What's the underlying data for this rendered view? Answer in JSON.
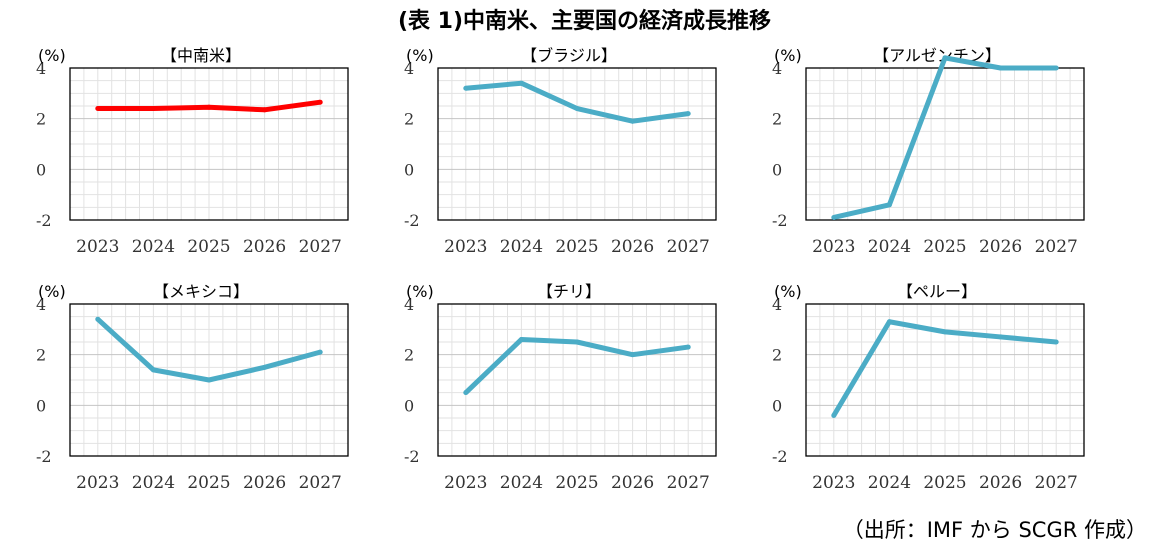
{
  "title": "(表 1)中南米、主要国の経済成長推移",
  "source": "（出所：IMF から SCGR 作成）",
  "chart_data": [
    {
      "type": "line",
      "title": "【中南米】",
      "ylabel": "(%)",
      "categories": [
        "2023",
        "2024",
        "2025",
        "2026",
        "2027"
      ],
      "values": [
        2.4,
        2.4,
        2.45,
        2.35,
        2.65
      ],
      "ylim": [
        -2,
        4
      ],
      "yticks": [
        "4",
        "2",
        "0",
        "-2"
      ],
      "color": "#ff0000",
      "grid": true
    },
    {
      "type": "line",
      "title": "【ブラジル】",
      "ylabel": "(%)",
      "categories": [
        "2023",
        "2024",
        "2025",
        "2026",
        "2027"
      ],
      "values": [
        3.2,
        3.4,
        2.4,
        1.9,
        2.2
      ],
      "ylim": [
        -2,
        4
      ],
      "yticks": [
        "4",
        "2",
        "0",
        "-2"
      ],
      "color": "#4bacc6",
      "grid": true
    },
    {
      "type": "line",
      "title": "【アルゼンチン】",
      "ylabel": "(%)",
      "categories": [
        "2023",
        "2024",
        "2025",
        "2026",
        "2027"
      ],
      "values": [
        -1.9,
        -1.4,
        4.4,
        4.0,
        4.0
      ],
      "ylim": [
        -2,
        4
      ],
      "yticks": [
        "4",
        "2",
        "0",
        "-2"
      ],
      "color": "#4bacc6",
      "grid": true
    },
    {
      "type": "line",
      "title": "【メキシコ】",
      "ylabel": "(%)",
      "categories": [
        "2023",
        "2024",
        "2025",
        "2026",
        "2027"
      ],
      "values": [
        3.4,
        1.4,
        1.0,
        1.5,
        2.1
      ],
      "ylim": [
        -2,
        4
      ],
      "yticks": [
        "4",
        "2",
        "0",
        "-2"
      ],
      "color": "#4bacc6",
      "grid": true
    },
    {
      "type": "line",
      "title": "【チリ】",
      "ylabel": "(%)",
      "categories": [
        "2023",
        "2024",
        "2025",
        "2026",
        "2027"
      ],
      "values": [
        0.5,
        2.6,
        2.5,
        2.0,
        2.3
      ],
      "ylim": [
        -2,
        4
      ],
      "yticks": [
        "4",
        "2",
        "0",
        "-2"
      ],
      "color": "#4bacc6",
      "grid": true
    },
    {
      "type": "line",
      "title": "【ペルー】",
      "ylabel": "(%)",
      "categories": [
        "2023",
        "2024",
        "2025",
        "2026",
        "2027"
      ],
      "values": [
        -0.4,
        3.3,
        2.9,
        2.7,
        2.5
      ],
      "ylim": [
        -2,
        4
      ],
      "yticks": [
        "4",
        "2",
        "0",
        "-2"
      ],
      "color": "#4bacc6",
      "grid": true
    }
  ]
}
